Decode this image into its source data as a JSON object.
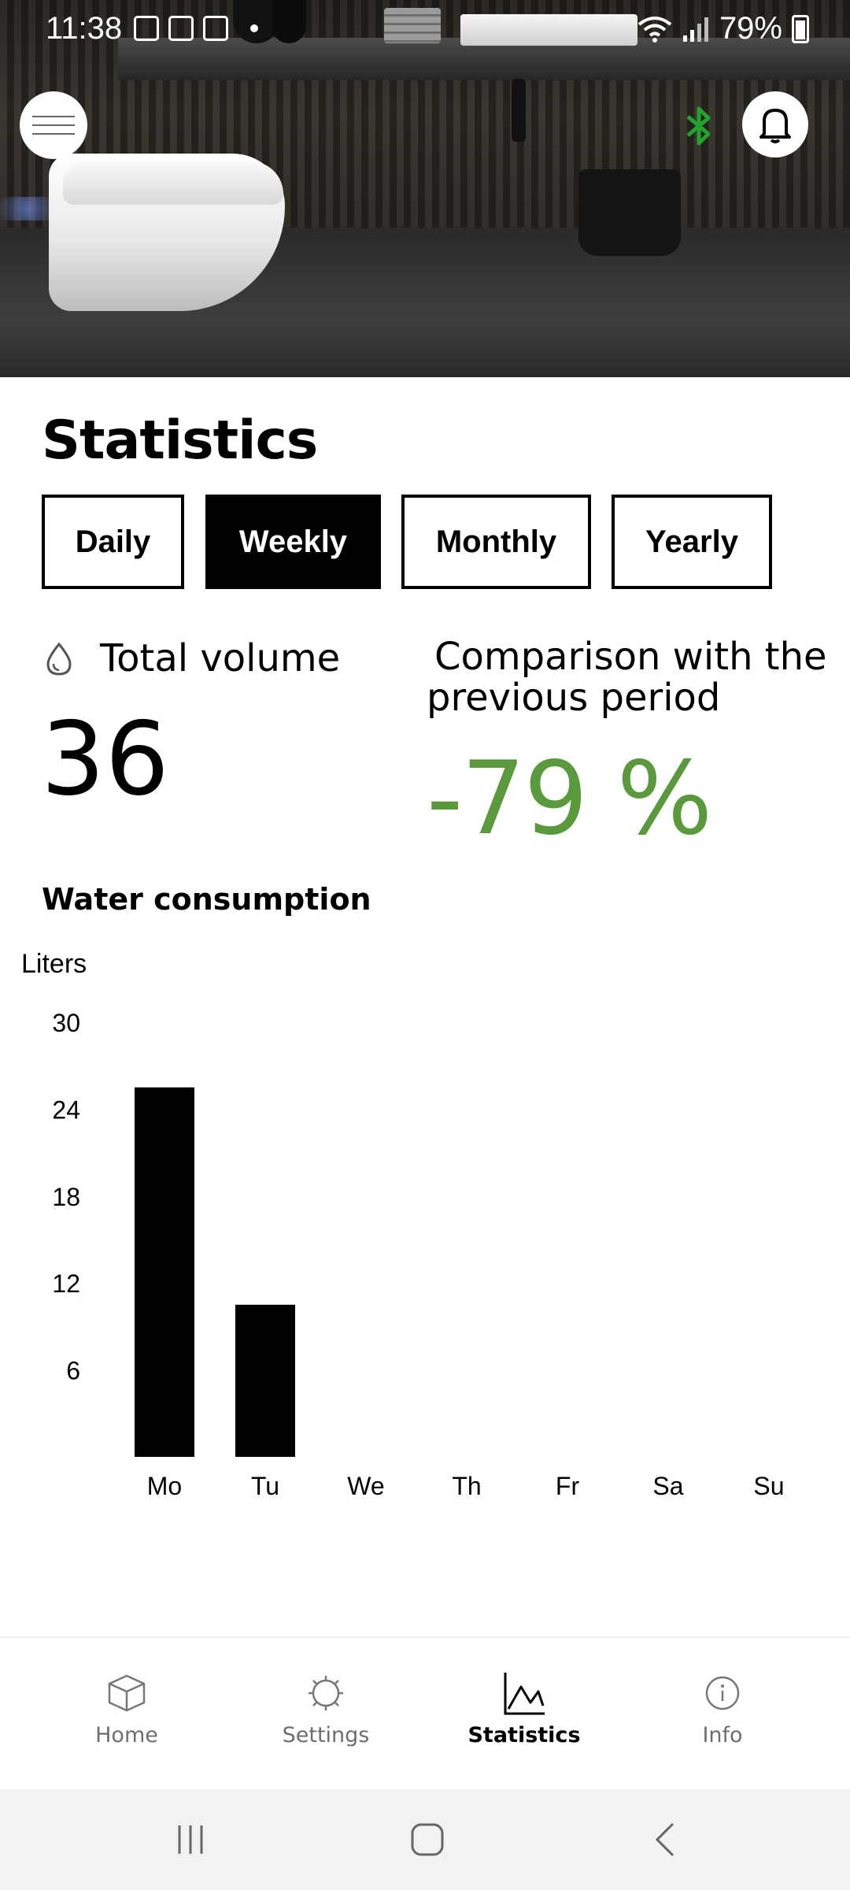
{
  "status_bar": {
    "time": "11:38",
    "battery": "79%"
  },
  "header": {
    "menu_icon": "menu-icon",
    "bluetooth_icon": "bluetooth-icon",
    "bluetooth_color": "#22a32b",
    "notification_icon": "bell-icon"
  },
  "page": {
    "title": "Statistics"
  },
  "period_tabs": [
    {
      "label": "Daily",
      "active": false
    },
    {
      "label": "Weekly",
      "active": true
    },
    {
      "label": "Monthly",
      "active": false
    },
    {
      "label": "Yearly",
      "active": false
    }
  ],
  "summary": {
    "total_volume_label": "Total volume",
    "total_volume_value": "36",
    "total_volume_icon": "water-drop-icon",
    "comparison_label": "Comparison with the previous period",
    "comparison_value": "-79 %",
    "comparison_color": "#5a9a3c"
  },
  "consumption": {
    "section_title": "Water consumption",
    "unit_label": "Liters"
  },
  "chart_data": {
    "type": "bar",
    "title": "Water consumption",
    "ylabel": "Liters",
    "xlabel": "",
    "categories": [
      "Mo",
      "Tu",
      "We",
      "Th",
      "Fr",
      "Sa",
      "Su"
    ],
    "values": [
      25.5,
      10.5,
      0,
      0,
      0,
      0,
      0
    ],
    "y_ticks": [
      6,
      12,
      18,
      24,
      30
    ],
    "ylim": [
      0,
      30
    ],
    "bar_color": "#000000",
    "grid": false
  },
  "bottom_nav": [
    {
      "label": "Home",
      "icon": "cube-icon",
      "active": false
    },
    {
      "label": "Settings",
      "icon": "gear-icon",
      "active": false
    },
    {
      "label": "Statistics",
      "icon": "chart-icon",
      "active": true
    },
    {
      "label": "Info",
      "icon": "info-icon",
      "active": false
    }
  ],
  "system_nav": {
    "recents_icon": "recents-icon",
    "home_icon": "home-square-icon",
    "back_icon": "back-chevron-icon"
  }
}
